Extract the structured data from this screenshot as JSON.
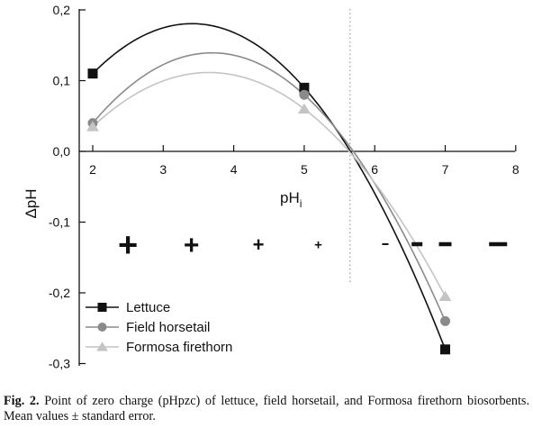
{
  "chart_data": {
    "type": "line",
    "title": "",
    "xlabel_main": "pH",
    "xlabel_sub": "i",
    "ylabel": "ΔpH",
    "xlim": [
      2,
      8
    ],
    "ylim": [
      -0.3,
      0.2
    ],
    "x_ticks": [
      "2",
      "3",
      "4",
      "5",
      "6",
      "7",
      "8"
    ],
    "y_ticks": [
      "0,2",
      "0,1",
      "0,0",
      "-0,1",
      "-0,2",
      "-0,3"
    ],
    "x": [
      2,
      5,
      7
    ],
    "series": [
      {
        "name": "Lettuce",
        "values": [
          0.11,
          0.09,
          -0.28
        ],
        "color": "#111111",
        "marker": "square"
      },
      {
        "name": "Field horsetail",
        "values": [
          0.04,
          0.08,
          -0.24
        ],
        "color": "#8a8a8a",
        "marker": "circle"
      },
      {
        "name": "Formosa firethorn",
        "values": [
          0.035,
          0.06,
          -0.205
        ],
        "color": "#c4c4c4",
        "marker": "triangle"
      }
    ],
    "pzc_line_x": 5.65,
    "charge_signs": [
      {
        "text": "+",
        "x": 2.5,
        "size": "xlarge"
      },
      {
        "text": "+",
        "x": 3.4,
        "size": "large"
      },
      {
        "text": "+",
        "x": 4.35,
        "size": "medium"
      },
      {
        "text": "+",
        "x": 5.2,
        "size": "small"
      },
      {
        "text": "-",
        "x": 6.15,
        "size": "small"
      },
      {
        "text": "-",
        "x": 6.6,
        "size": "medium"
      },
      {
        "text": "-",
        "x": 7.0,
        "size": "large"
      },
      {
        "text": "-",
        "x": 7.75,
        "size": "xlarge"
      }
    ],
    "legend_position": "bottom-left",
    "grid": false
  },
  "caption": {
    "label": "Fig. 2.",
    "text": " Point of zero charge (pHpzc) of lettuce, field horsetail, and Formosa firethorn biosorbents. Mean values ± standard error."
  }
}
